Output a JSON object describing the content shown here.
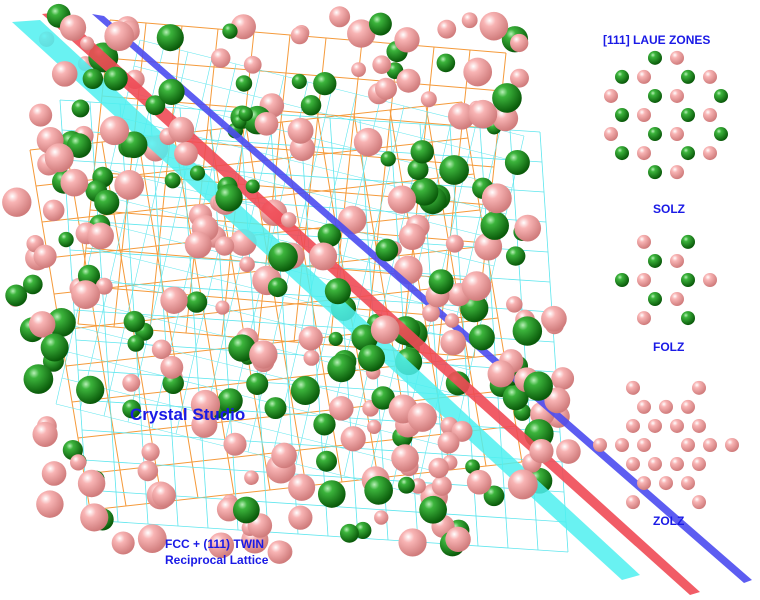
{
  "title": "Crystal Studio",
  "caption": {
    "line1": "FCC + (111) TWIN",
    "line2": "Reciprocal Lattice"
  },
  "laue": {
    "heading": "[111] LAUE ZONES",
    "zones": [
      {
        "label": "SOLZ"
      },
      {
        "label": "FOLZ"
      },
      {
        "label": "ZOLZ"
      }
    ]
  },
  "colors": {
    "atom_green": "#1e8c1e",
    "atom_pink": "#f4a6a6",
    "lattice_orange": "#f59a3a",
    "lattice_cyan": "#5ee6ee",
    "plane_cyan": "#4ff0f0",
    "plane_red": "#f04a55",
    "plane_blue": "#4b4bf0",
    "text": "#1a1ae6"
  }
}
